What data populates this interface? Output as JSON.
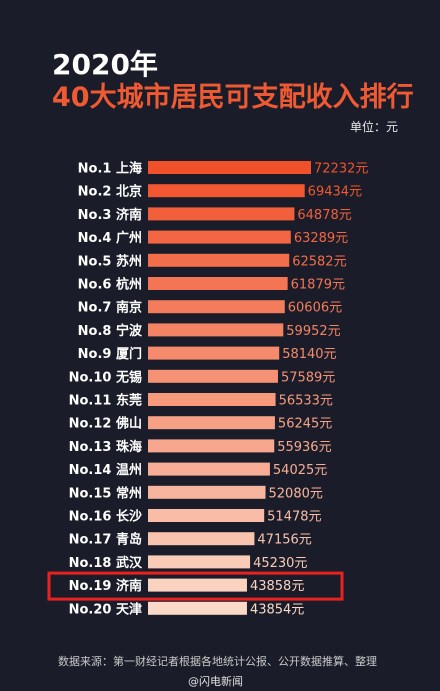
{
  "header": {
    "year": "2020年",
    "title": "40大城市居民可支配收入排行",
    "unit": "单位：元"
  },
  "source": "数据来源：第一财经记者根据各地统计公报、公开数据推算、整理",
  "watermark": "@闪电新闻",
  "highlight_index": 18,
  "colors": {
    "background": "#1a1d29",
    "bar_start": "#f0512a",
    "bar_end": "#fbd9c8",
    "highlight_box": "#e8221e",
    "title": "#ef5a32"
  },
  "chart_data": {
    "type": "bar",
    "orientation": "horizontal",
    "categories": [
      "No.1 上海",
      "No.2 北京",
      "No.3 济南",
      "No.4 广州",
      "No.5 苏州",
      "No.6 杭州",
      "No.7 南京",
      "No.8 宁波",
      "No.9 厦门",
      "No.10 无锡",
      "No.11 东莞",
      "No.12 佛山",
      "No.13 珠海",
      "No.14 温州",
      "No.15 常州",
      "No.16 长沙",
      "No.17 青岛",
      "No.18 武汉",
      "No.19 济南",
      "No.20 天津"
    ],
    "values": [
      72232,
      69434,
      64878,
      63289,
      62582,
      61879,
      60606,
      59952,
      58140,
      57589,
      56533,
      56245,
      55936,
      54025,
      52080,
      51478,
      47156,
      45230,
      43858,
      43854
    ],
    "value_labels": [
      "72232元",
      "69434元",
      "64878元",
      "63289元",
      "62582元",
      "61879元",
      "60606元",
      "59952元",
      "58140元",
      "57589元",
      "56533元",
      "56245元",
      "55936元",
      "54025元",
      "52080元",
      "51478元",
      "47156元",
      "45230元",
      "43858元",
      "43854元"
    ]
  }
}
